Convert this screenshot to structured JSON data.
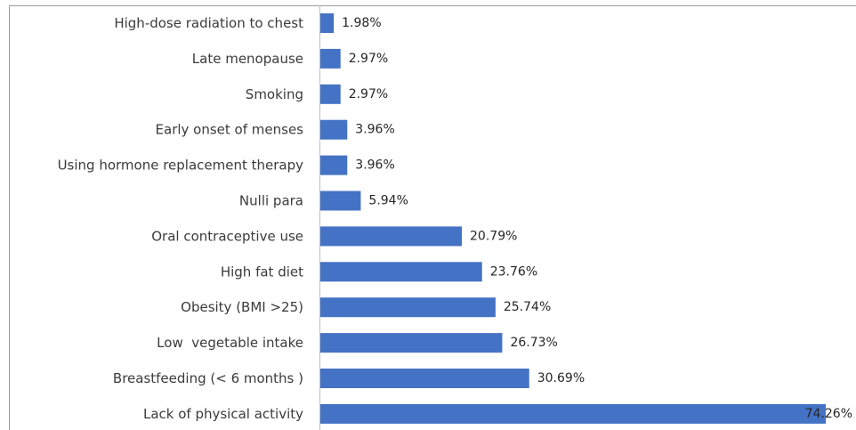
{
  "chart_data": {
    "type": "bar",
    "orientation": "horizontal",
    "title": "",
    "xlabel": "",
    "ylabel": "",
    "xlim": [
      0,
      74.26
    ],
    "grid": false,
    "legend": "none",
    "colors": {
      "bar": "#4472c4"
    },
    "categories": [
      "High-dose radiation to chest",
      "Late menopause",
      "Smoking",
      "Early onset of menses",
      "Using hormone replacement therapy",
      "Nulli para",
      "Oral contraceptive use",
      "High fat diet",
      "Obesity (BMI >25)",
      "Low  vegetable intake",
      "Breastfeeding (< 6 months )",
      "Lack of physical activity"
    ],
    "values": [
      1.98,
      2.97,
      2.97,
      3.96,
      3.96,
      5.94,
      20.79,
      23.76,
      25.74,
      26.73,
      30.69,
      74.26
    ],
    "data_labels": [
      "1.98%",
      "2.97%",
      "2.97%",
      "3.96%",
      "3.96%",
      "5.94%",
      "20.79%",
      "23.76%",
      "25.74%",
      "26.73%",
      "30.69%",
      "74.26%"
    ]
  }
}
